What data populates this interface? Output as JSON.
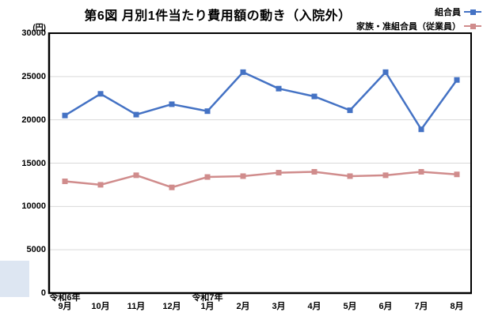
{
  "title": "第6図 月別1件当たり費用額の動き（入院外）",
  "axis_unit_label": "(円)",
  "chart_data": {
    "type": "line",
    "title": "第6図 月別1件当たり費用額の動き（入院外）",
    "xlabel": "",
    "ylabel": "(円)",
    "categories": [
      "9月",
      "10月",
      "11月",
      "12月",
      "1月",
      "2月",
      "3月",
      "4月",
      "5月",
      "6月",
      "7月",
      "8月"
    ],
    "year_annotations": [
      {
        "category_index": 0,
        "label": "令和6年"
      },
      {
        "category_index": 4,
        "label": "令和7年"
      }
    ],
    "series": [
      {
        "name": "組合員",
        "color": "#4472C4",
        "values": [
          20500,
          23000,
          20600,
          21800,
          21000,
          25500,
          23600,
          22700,
          21100,
          25500,
          18900,
          24600
        ]
      },
      {
        "name": "家族・准組合員（従業員）",
        "color": "#D08C8C",
        "values": [
          12900,
          12500,
          13600,
          12200,
          13400,
          13500,
          13900,
          14000,
          13500,
          13600,
          14000,
          13700
        ]
      }
    ],
    "ylim": [
      0,
      30000
    ],
    "yticks": [
      0,
      5000,
      10000,
      15000,
      20000,
      25000,
      30000
    ],
    "grid": true,
    "marker": "square",
    "legend_position": "top-right"
  },
  "colors": {
    "grid": "#D9D9D9",
    "axis": "#000000",
    "background": "#FFFFFF",
    "artifact_highlight": "#DDE6F2"
  }
}
